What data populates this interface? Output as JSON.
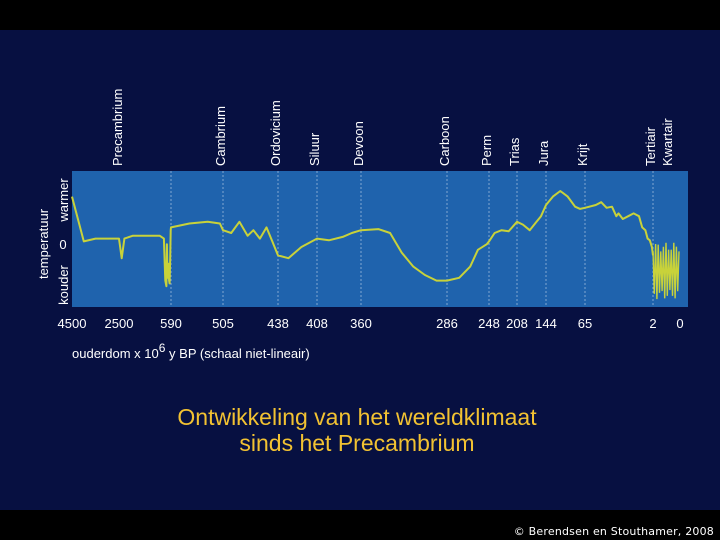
{
  "chart_data": {
    "type": "line",
    "title_lines": [
      "Ontwikkeling van het wereldklimaat",
      "sinds het Precambrium"
    ],
    "ylabel": "temperatuur",
    "y_axis_labels": [
      "warmer",
      "0",
      "kouder"
    ],
    "xlabel_before_sup": "ouderdom x 10",
    "xlabel_sup": "6",
    "xlabel_after_sup": " y BP (schaal niet-lineair)",
    "x_scale": "niet-lineair",
    "x_ticks": [
      "4500",
      "2500",
      "590",
      "505",
      "438",
      "408",
      "360",
      "286",
      "248",
      "208",
      "144",
      "65",
      "2",
      "0"
    ],
    "periods": [
      {
        "name": "Precambrium",
        "boundary": "590"
      },
      {
        "name": "Cambrium",
        "boundary": "505"
      },
      {
        "name": "Ordovicium",
        "boundary": "438"
      },
      {
        "name": "Siluur",
        "boundary": "408"
      },
      {
        "name": "Devoon",
        "boundary": "360"
      },
      {
        "name": "Carboon",
        "boundary": "286"
      },
      {
        "name": "Perm",
        "boundary": "248"
      },
      {
        "name": "Trias",
        "boundary": "208"
      },
      {
        "name": "Jura",
        "boundary": "144"
      },
      {
        "name": "Krijt",
        "boundary": "65"
      },
      {
        "name": "Tertiair",
        "boundary": "2"
      },
      {
        "name": "Kwartair",
        "boundary": "0"
      }
    ],
    "y_range": [
      -1,
      1
    ],
    "grid": "vertical lines at period boundaries",
    "series": [
      {
        "color": "#c8d23a",
        "points": [
          [
            4500,
            0.9
          ],
          [
            4000,
            0.1
          ],
          [
            3500,
            0.15
          ],
          [
            3000,
            0.15
          ],
          [
            2500,
            0.15
          ],
          [
            2400,
            -0.2
          ],
          [
            2300,
            0.15
          ],
          [
            2000,
            0.2
          ],
          [
            1500,
            0.2
          ],
          [
            1000,
            0.2
          ],
          [
            850,
            0.15
          ],
          [
            800,
            -0.6
          ],
          [
            760,
            -0.7
          ],
          [
            740,
            0.05
          ],
          [
            720,
            -0.5
          ],
          [
            700,
            -0.55
          ],
          [
            680,
            -0.3
          ],
          [
            660,
            -0.6
          ],
          [
            640,
            -0.65
          ],
          [
            620,
            -0.2
          ],
          [
            600,
            0.3
          ],
          [
            590,
            0.35
          ],
          [
            560,
            0.42
          ],
          [
            530,
            0.45
          ],
          [
            510,
            0.42
          ],
          [
            505,
            0.3
          ],
          [
            495,
            0.25
          ],
          [
            485,
            0.45
          ],
          [
            475,
            0.2
          ],
          [
            468,
            0.3
          ],
          [
            460,
            0.15
          ],
          [
            452,
            0.35
          ],
          [
            445,
            0.1
          ],
          [
            438,
            -0.15
          ],
          [
            430,
            -0.2
          ],
          [
            420,
            0.0
          ],
          [
            408,
            0.15
          ],
          [
            395,
            0.12
          ],
          [
            380,
            0.18
          ],
          [
            370,
            0.25
          ],
          [
            360,
            0.3
          ],
          [
            345,
            0.32
          ],
          [
            335,
            0.25
          ],
          [
            325,
            -0.1
          ],
          [
            315,
            -0.35
          ],
          [
            305,
            -0.5
          ],
          [
            295,
            -0.6
          ],
          [
            286,
            -0.6
          ],
          [
            275,
            -0.55
          ],
          [
            265,
            -0.35
          ],
          [
            258,
            -0.05
          ],
          [
            250,
            0.05
          ],
          [
            248,
            0.1
          ],
          [
            240,
            0.25
          ],
          [
            230,
            0.3
          ],
          [
            220,
            0.28
          ],
          [
            208,
            0.45
          ],
          [
            195,
            0.4
          ],
          [
            180,
            0.3
          ],
          [
            165,
            0.45
          ],
          [
            155,
            0.55
          ],
          [
            144,
            0.75
          ],
          [
            130,
            0.9
          ],
          [
            115,
            1.0
          ],
          [
            100,
            0.9
          ],
          [
            85,
            0.72
          ],
          [
            75,
            0.68
          ],
          [
            65,
            0.7
          ],
          [
            55,
            0.75
          ],
          [
            50,
            0.8
          ],
          [
            45,
            0.7
          ],
          [
            40,
            0.72
          ],
          [
            36,
            0.55
          ],
          [
            34,
            0.6
          ],
          [
            30,
            0.5
          ],
          [
            25,
            0.55
          ],
          [
            20,
            0.6
          ],
          [
            15,
            0.55
          ],
          [
            12,
            0.35
          ],
          [
            9,
            0.3
          ],
          [
            7,
            0.15
          ],
          [
            5,
            0.12
          ],
          [
            3,
            0.0
          ],
          [
            2,
            -0.15
          ]
        ],
        "quaternary_oscillation": {
          "from": "2",
          "to": "0",
          "min": -0.85,
          "max": 0.0
        }
      }
    ],
    "credit": "© Berendsen en Stouthamer, 2008"
  }
}
